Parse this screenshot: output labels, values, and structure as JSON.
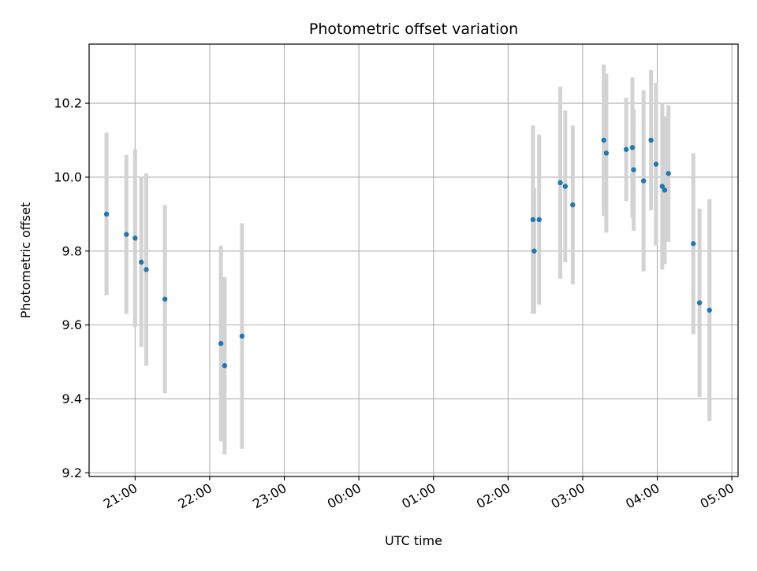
{
  "chart_data": {
    "type": "scatter",
    "title": "Photometric offset variation",
    "xlabel": "UTC time",
    "ylabel": "Photometric offset",
    "grid": true,
    "x_axis_type": "time",
    "xlim": [
      "20:23",
      "05:05"
    ],
    "ylim": [
      9.19,
      10.36
    ],
    "x_ticks": [
      "21:00",
      "22:00",
      "23:00",
      "00:00",
      "01:00",
      "02:00",
      "03:00",
      "04:00",
      "05:00"
    ],
    "y_ticks": [
      "9.2",
      "9.4",
      "9.6",
      "9.8",
      "10.0",
      "10.2"
    ],
    "colors": {
      "marker": "#1f77b4",
      "errorbar": "#d3d3d3",
      "grid": "#b0b0b0"
    },
    "points": [
      {
        "t": "20:37",
        "y": 9.9,
        "err": 0.22
      },
      {
        "t": "20:53",
        "y": 9.845,
        "err": 0.215
      },
      {
        "t": "21:00",
        "y": 9.835,
        "err": 0.24
      },
      {
        "t": "21:05",
        "y": 9.77,
        "err": 0.23
      },
      {
        "t": "21:09",
        "y": 9.75,
        "err": 0.26
      },
      {
        "t": "21:24",
        "y": 9.67,
        "err": 0.255
      },
      {
        "t": "22:09",
        "y": 9.55,
        "err": 0.265
      },
      {
        "t": "22:12",
        "y": 9.49,
        "err": 0.24
      },
      {
        "t": "22:26",
        "y": 9.57,
        "err": 0.305
      },
      {
        "t": "02:20",
        "y": 9.885,
        "err": 0.255
      },
      {
        "t": "02:21",
        "y": 9.8,
        "err": 0.17
      },
      {
        "t": "02:25",
        "y": 9.885,
        "err": 0.23
      },
      {
        "t": "02:42",
        "y": 9.985,
        "err": 0.26
      },
      {
        "t": "02:46",
        "y": 9.975,
        "err": 0.205
      },
      {
        "t": "02:52",
        "y": 9.925,
        "err": 0.215
      },
      {
        "t": "03:17",
        "y": 10.1,
        "err": 0.205
      },
      {
        "t": "03:19",
        "y": 10.065,
        "err": 0.215
      },
      {
        "t": "03:35",
        "y": 10.075,
        "err": 0.14
      },
      {
        "t": "03:40",
        "y": 10.08,
        "err": 0.19
      },
      {
        "t": "03:41",
        "y": 10.02,
        "err": 0.165
      },
      {
        "t": "03:49",
        "y": 9.99,
        "err": 0.245
      },
      {
        "t": "03:55",
        "y": 10.1,
        "err": 0.19
      },
      {
        "t": "03:59",
        "y": 10.035,
        "err": 0.22
      },
      {
        "t": "04:04",
        "y": 9.975,
        "err": 0.225
      },
      {
        "t": "04:06",
        "y": 9.965,
        "err": 0.2
      },
      {
        "t": "04:09",
        "y": 10.01,
        "err": 0.185
      },
      {
        "t": "04:29",
        "y": 9.82,
        "err": 0.245
      },
      {
        "t": "04:34",
        "y": 9.66,
        "err": 0.255
      },
      {
        "t": "04:42",
        "y": 9.64,
        "err": 0.3
      }
    ]
  }
}
